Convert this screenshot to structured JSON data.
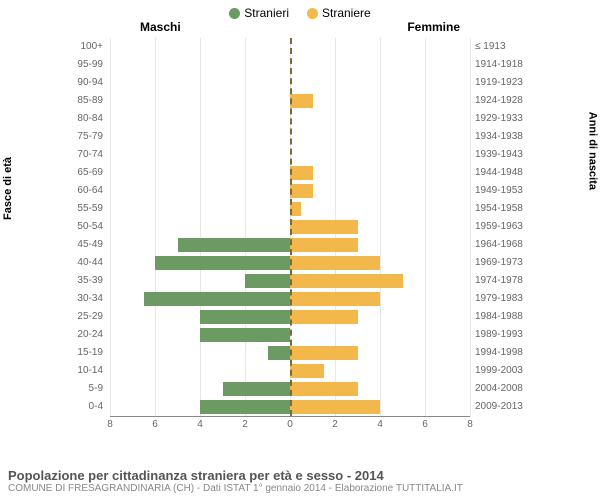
{
  "legend": {
    "male": {
      "label": "Stranieri",
      "color": "#6b9a62"
    },
    "female": {
      "label": "Straniere",
      "color": "#f2b84b"
    }
  },
  "headers": {
    "male": "Maschi",
    "female": "Femmine"
  },
  "y_axis_left": "Fasce di età",
  "y_axis_right": "Anni di nascita",
  "x_max": 8,
  "x_ticks": [
    8,
    6,
    4,
    2,
    0,
    2,
    4,
    6,
    8
  ],
  "rows": [
    {
      "age": "100+",
      "birth": "≤ 1913",
      "m": 0,
      "f": 0
    },
    {
      "age": "95-99",
      "birth": "1914-1918",
      "m": 0,
      "f": 0
    },
    {
      "age": "90-94",
      "birth": "1919-1923",
      "m": 0,
      "f": 0
    },
    {
      "age": "85-89",
      "birth": "1924-1928",
      "m": 0,
      "f": 1
    },
    {
      "age": "80-84",
      "birth": "1929-1933",
      "m": 0,
      "f": 0
    },
    {
      "age": "75-79",
      "birth": "1934-1938",
      "m": 0,
      "f": 0
    },
    {
      "age": "70-74",
      "birth": "1939-1943",
      "m": 0,
      "f": 0
    },
    {
      "age": "65-69",
      "birth": "1944-1948",
      "m": 0,
      "f": 1
    },
    {
      "age": "60-64",
      "birth": "1949-1953",
      "m": 0,
      "f": 1
    },
    {
      "age": "55-59",
      "birth": "1954-1958",
      "m": 0,
      "f": 0.5
    },
    {
      "age": "50-54",
      "birth": "1959-1963",
      "m": 0,
      "f": 3
    },
    {
      "age": "45-49",
      "birth": "1964-1968",
      "m": 5,
      "f": 3
    },
    {
      "age": "40-44",
      "birth": "1969-1973",
      "m": 6,
      "f": 4
    },
    {
      "age": "35-39",
      "birth": "1974-1978",
      "m": 2,
      "f": 5
    },
    {
      "age": "30-34",
      "birth": "1979-1983",
      "m": 6.5,
      "f": 4
    },
    {
      "age": "25-29",
      "birth": "1984-1988",
      "m": 4,
      "f": 3
    },
    {
      "age": "20-24",
      "birth": "1989-1993",
      "m": 4,
      "f": 0
    },
    {
      "age": "15-19",
      "birth": "1994-1998",
      "m": 1,
      "f": 3
    },
    {
      "age": "10-14",
      "birth": "1999-2003",
      "m": 0,
      "f": 1.5
    },
    {
      "age": "5-9",
      "birth": "2004-2008",
      "m": 3,
      "f": 3
    },
    {
      "age": "0-4",
      "birth": "2009-2013",
      "m": 4,
      "f": 4
    }
  ],
  "title": "Popolazione per cittadinanza straniera per età e sesso - 2014",
  "subtitle": "COMUNE DI FRESAGRANDINARIA (CH) - Dati ISTAT 1° gennaio 2014 - Elaborazione TUTTITALIA.IT",
  "colors": {
    "male_bar": "#6b9a62",
    "female_bar": "#f2b84b",
    "grid": "#e8e8e8",
    "axis": "#888888",
    "center": "#7a6a3a",
    "bg": "#ffffff"
  },
  "typography": {
    "tick_fontsize": 10,
    "title_fontsize": 13,
    "subtitle_fontsize": 10
  }
}
